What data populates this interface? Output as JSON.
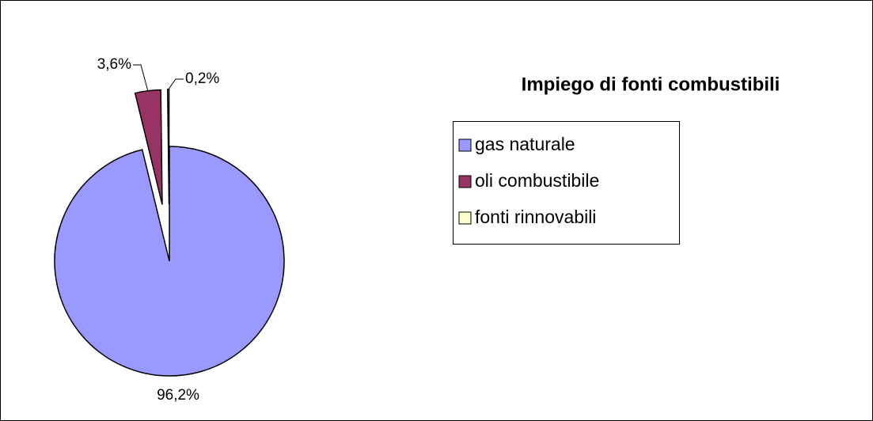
{
  "chart_data": {
    "type": "pie",
    "title": "Impiego di fonti combustibili",
    "categories": [
      "gas naturale",
      "oli combustibile",
      "fonti rinnovabili"
    ],
    "values": [
      96.2,
      3.6,
      0.2
    ],
    "value_labels": [
      "96,2%",
      "3,6%",
      "0,2%"
    ],
    "colors": [
      "#9999ff",
      "#993366",
      "#ffffcc"
    ],
    "legend": "right"
  }
}
